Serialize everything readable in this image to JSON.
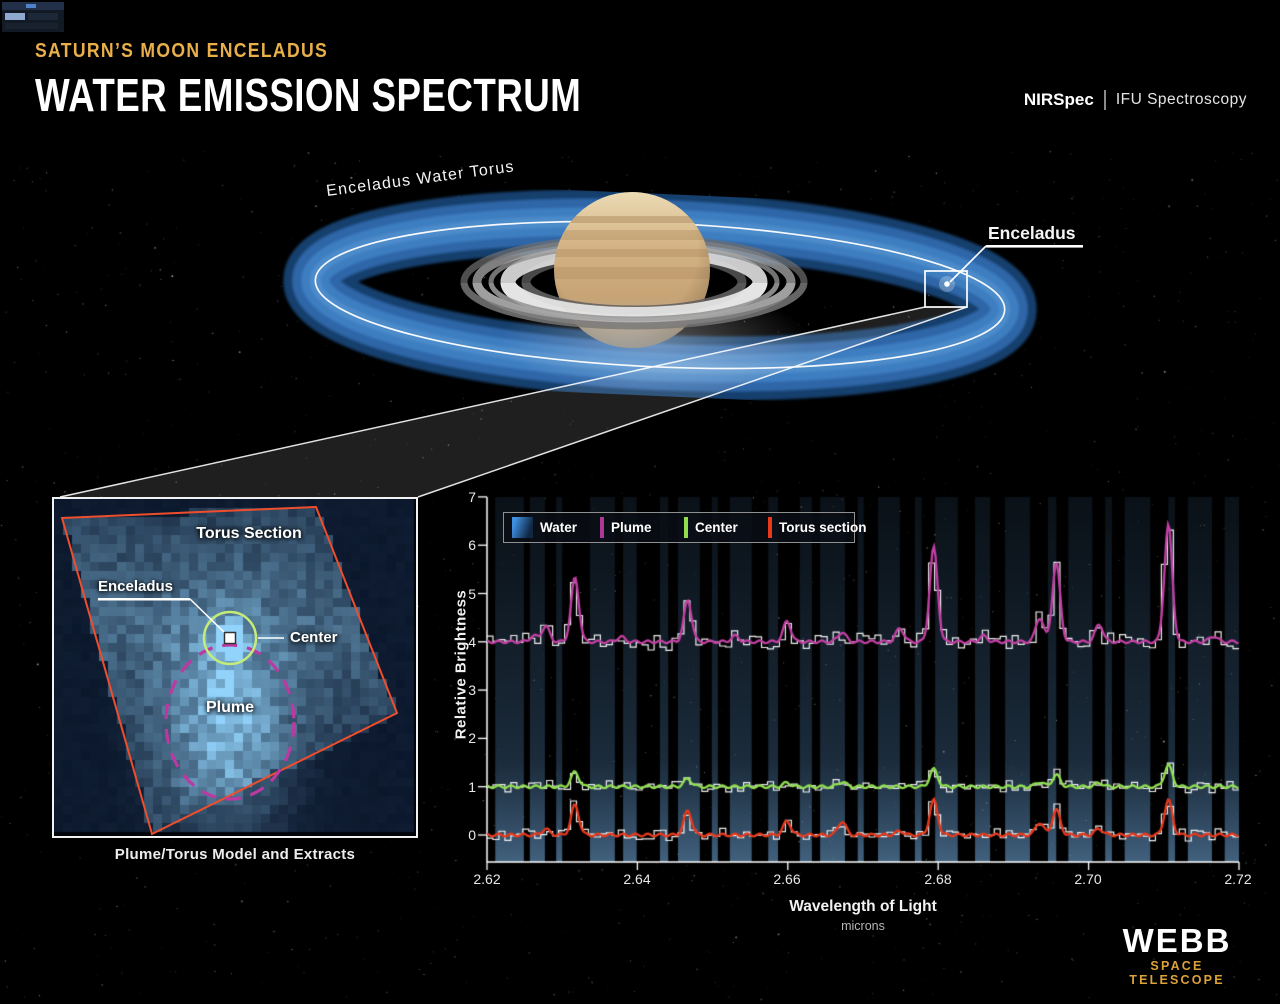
{
  "header": {
    "eyebrow": "SATURN’S MOON ENCELADUS",
    "title": "WATER EMISSION SPECTRUM",
    "instrument": "NIRSpec",
    "mode": "IFU Spectroscopy"
  },
  "illustration": {
    "torus_label": "Enceladus Water Torus",
    "enceladus_label": "Enceladus"
  },
  "inset": {
    "torus_section_label": "Torus Section",
    "enceladus_label": "Enceladus",
    "center_label": "Center",
    "plume_label": "Plume",
    "caption": "Plume/Torus Model and Extracts"
  },
  "footer": {
    "logo_main": "WEBB",
    "logo_sub": "SPACE TELESCOPE"
  },
  "colors": {
    "accent_gold": "#e9b04a",
    "water_blue": "#3f8fe0",
    "plume_magenta": "#c23fa4",
    "center_green": "#90e050",
    "torus_red": "#e8391c"
  },
  "chart_data": {
    "type": "line",
    "title": "",
    "xlabel": "Wavelength of Light",
    "xlabel_unit": "microns",
    "ylabel": "Relative Brightness",
    "xlim": [
      2.62,
      2.72
    ],
    "ylim": [
      -0.55,
      7
    ],
    "grid": false,
    "legend_position": "top-left",
    "x_ticks": [
      2.62,
      2.64,
      2.66,
      2.68,
      2.7,
      2.72
    ],
    "x_tick_labels": [
      "2.62",
      "2.64",
      "2.66",
      "2.68",
      "2.70",
      "2.72"
    ],
    "y_ticks": [
      0,
      1,
      2,
      3,
      4,
      5,
      6,
      7
    ],
    "y_tick_labels": [
      "0",
      "1",
      "2",
      "3",
      "4",
      "5",
      "6",
      "7"
    ],
    "legend": [
      {
        "label": "Water",
        "color": "#3f8fe0",
        "swatch": "gradient-square"
      },
      {
        "label": "Plume",
        "color": "#ad3896",
        "swatch": "bar"
      },
      {
        "label": "Center",
        "color": "#8fdf4d",
        "swatch": "bar"
      },
      {
        "label": "Torus section",
        "color": "#e8391c",
        "swatch": "bar"
      }
    ],
    "peak_sigma": 0.00052,
    "observed_trace_color": "#ffffff",
    "water_bands": [
      [
        0.011,
        0.049
      ],
      [
        0.057,
        0.077
      ],
      [
        0.092,
        0.1
      ],
      [
        0.137,
        0.17
      ],
      [
        0.181,
        0.199
      ],
      [
        0.23,
        0.241
      ],
      [
        0.254,
        0.283
      ],
      [
        0.299,
        0.307
      ],
      [
        0.323,
        0.352
      ],
      [
        0.374,
        0.387
      ],
      [
        0.416,
        0.432
      ],
      [
        0.443,
        0.476
      ],
      [
        0.493,
        0.501
      ],
      [
        0.52,
        0.549
      ],
      [
        0.569,
        0.578
      ],
      [
        0.596,
        0.626
      ],
      [
        0.649,
        0.669
      ],
      [
        0.689,
        0.722
      ],
      [
        0.746,
        0.757
      ],
      [
        0.773,
        0.805
      ],
      [
        0.822,
        0.831
      ],
      [
        0.848,
        0.882
      ],
      [
        0.906,
        0.915
      ],
      [
        0.932,
        0.964
      ],
      [
        0.981,
        1.0
      ]
    ],
    "series": [
      {
        "name": "Plume",
        "color": "#c23fa4",
        "baseline": 4.0,
        "noise": 0.18,
        "peaks": [
          [
            2.6262,
            0.12
          ],
          [
            2.6278,
            0.32
          ],
          [
            2.6317,
            1.32
          ],
          [
            2.6378,
            0.1
          ],
          [
            2.6467,
            0.85
          ],
          [
            2.653,
            0.12
          ],
          [
            2.6599,
            0.42
          ],
          [
            2.6672,
            0.2
          ],
          [
            2.6749,
            0.28
          ],
          [
            2.6794,
            1.95
          ],
          [
            2.686,
            0.12
          ],
          [
            2.6935,
            0.5
          ],
          [
            2.6957,
            1.62
          ],
          [
            2.7014,
            0.36
          ],
          [
            2.7106,
            2.42
          ],
          [
            2.7166,
            0.12
          ]
        ]
      },
      {
        "name": "Center",
        "color": "#90e050",
        "baseline": 1.0,
        "noise": 0.11,
        "peaks": [
          [
            2.6317,
            0.3
          ],
          [
            2.6467,
            0.16
          ],
          [
            2.6599,
            0.08
          ],
          [
            2.6672,
            0.1
          ],
          [
            2.6794,
            0.36
          ],
          [
            2.6935,
            0.1
          ],
          [
            2.6957,
            0.24
          ],
          [
            2.7014,
            0.08
          ],
          [
            2.7106,
            0.44
          ]
        ]
      },
      {
        "name": "Torus section",
        "color": "#e8391c",
        "baseline": 0.0,
        "noise": 0.11,
        "peaks": [
          [
            2.6278,
            0.12
          ],
          [
            2.6317,
            0.62
          ],
          [
            2.6467,
            0.5
          ],
          [
            2.6599,
            0.28
          ],
          [
            2.6672,
            0.28
          ],
          [
            2.6749,
            0.08
          ],
          [
            2.6794,
            0.72
          ],
          [
            2.6935,
            0.26
          ],
          [
            2.6957,
            0.52
          ],
          [
            2.7014,
            0.13
          ],
          [
            2.7106,
            0.72
          ]
        ]
      }
    ]
  }
}
